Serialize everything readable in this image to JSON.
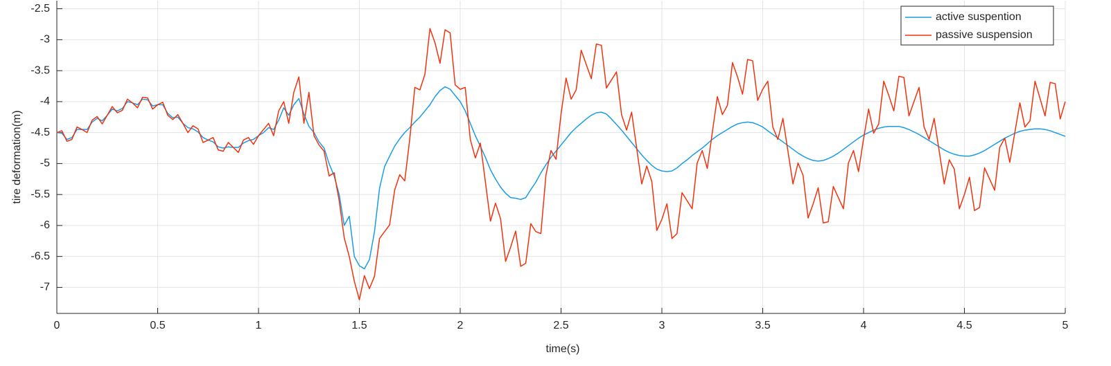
{
  "chart_data": {
    "type": "line",
    "xlabel": "time(s)",
    "ylabel": "tire deformation(m)",
    "xlim": [
      0,
      5
    ],
    "ylim": [
      -7.42,
      -2.37
    ],
    "xticks": [
      0,
      0.5,
      1,
      1.5,
      2,
      2.5,
      3,
      3.5,
      4,
      4.5,
      5
    ],
    "yticks": [
      -7,
      -6.5,
      -6,
      -5.5,
      -5,
      -4.5,
      -4,
      -3.5,
      -3,
      -2.5
    ],
    "grid": true,
    "legend": "upper right",
    "x": [
      0,
      0.025,
      0.05,
      0.075,
      0.1,
      0.125,
      0.15,
      0.175,
      0.2,
      0.225,
      0.25,
      0.275,
      0.3,
      0.325,
      0.35,
      0.375,
      0.4,
      0.425,
      0.45,
      0.475,
      0.5,
      0.525,
      0.55,
      0.575,
      0.6,
      0.625,
      0.65,
      0.675,
      0.7,
      0.725,
      0.75,
      0.775,
      0.8,
      0.825,
      0.85,
      0.875,
      0.9,
      0.925,
      0.95,
      0.975,
      1,
      1.025,
      1.05,
      1.075,
      1.1,
      1.125,
      1.15,
      1.175,
      1.2,
      1.225,
      1.25,
      1.275,
      1.3,
      1.325,
      1.35,
      1.375,
      1.4,
      1.425,
      1.45,
      1.475,
      1.5,
      1.525,
      1.55,
      1.575,
      1.6,
      1.625,
      1.65,
      1.675,
      1.7,
      1.725,
      1.75,
      1.775,
      1.8,
      1.825,
      1.85,
      1.875,
      1.9,
      1.925,
      1.95,
      1.975,
      2,
      2.025,
      2.05,
      2.075,
      2.1,
      2.125,
      2.15,
      2.175,
      2.2,
      2.225,
      2.25,
      2.275,
      2.3,
      2.325,
      2.35,
      2.375,
      2.4,
      2.425,
      2.45,
      2.475,
      2.5,
      2.525,
      2.55,
      2.575,
      2.6,
      2.625,
      2.65,
      2.675,
      2.7,
      2.725,
      2.75,
      2.775,
      2.8,
      2.825,
      2.85,
      2.875,
      2.9,
      2.925,
      2.95,
      2.975,
      3,
      3.025,
      3.05,
      3.075,
      3.1,
      3.125,
      3.15,
      3.175,
      3.2,
      3.225,
      3.25,
      3.275,
      3.3,
      3.325,
      3.35,
      3.375,
      3.4,
      3.425,
      3.45,
      3.475,
      3.5,
      3.525,
      3.55,
      3.575,
      3.6,
      3.625,
      3.65,
      3.675,
      3.7,
      3.725,
      3.75,
      3.775,
      3.8,
      3.825,
      3.85,
      3.875,
      3.9,
      3.925,
      3.95,
      3.975,
      4,
      4.025,
      4.05,
      4.075,
      4.1,
      4.125,
      4.15,
      4.175,
      4.2,
      4.225,
      4.25,
      4.275,
      4.3,
      4.325,
      4.35,
      4.375,
      4.4,
      4.425,
      4.45,
      4.475,
      4.5,
      4.525,
      4.55,
      4.575,
      4.6,
      4.625,
      4.65,
      4.675,
      4.7,
      4.725,
      4.75,
      4.775,
      4.8,
      4.825,
      4.85,
      4.875,
      4.9,
      4.925,
      4.95,
      4.975,
      5
    ],
    "series": [
      {
        "name": "active suspention",
        "color": "#1a9be6",
        "values": [
          -4.5,
          -4.51,
          -4.61,
          -4.58,
          -4.45,
          -4.45,
          -4.45,
          -4.33,
          -4.27,
          -4.31,
          -4.22,
          -4.12,
          -4.15,
          -4.11,
          -4.0,
          -4.02,
          -4.05,
          -3.96,
          -3.97,
          -4.07,
          -4.05,
          -4.05,
          -4.19,
          -4.26,
          -4.25,
          -4.35,
          -4.42,
          -4.44,
          -4.49,
          -4.58,
          -4.62,
          -4.65,
          -4.73,
          -4.75,
          -4.73,
          -4.74,
          -4.74,
          -4.67,
          -4.63,
          -4.61,
          -4.55,
          -4.5,
          -4.42,
          -4.45,
          -4.3,
          -4.1,
          -4.22,
          -4.05,
          -3.95,
          -4.2,
          -4.4,
          -4.5,
          -4.65,
          -4.75,
          -5.0,
          -5.2,
          -5.5,
          -6.0,
          -5.85,
          -6.5,
          -6.65,
          -6.7,
          -6.55,
          -6.1,
          -5.4,
          -5.05,
          -4.88,
          -4.72,
          -4.6,
          -4.5,
          -4.42,
          -4.33,
          -4.25,
          -4.15,
          -4.05,
          -3.92,
          -3.82,
          -3.76,
          -3.8,
          -3.9,
          -4.0,
          -4.15,
          -4.35,
          -4.55,
          -4.72,
          -4.9,
          -5.1,
          -5.25,
          -5.38,
          -5.48,
          -5.55,
          -5.56,
          -5.58,
          -5.55,
          -5.42,
          -5.3,
          -5.15,
          -5.02,
          -4.9,
          -4.8,
          -4.7,
          -4.6,
          -4.5,
          -4.42,
          -4.35,
          -4.28,
          -4.22,
          -4.18,
          -4.17,
          -4.2,
          -4.28,
          -4.37,
          -4.46,
          -4.56,
          -4.66,
          -4.76,
          -4.86,
          -4.95,
          -5.03,
          -5.09,
          -5.12,
          -5.13,
          -5.12,
          -5.07,
          -5.0,
          -4.94,
          -4.87,
          -4.81,
          -4.75,
          -4.68,
          -4.61,
          -4.55,
          -4.5,
          -4.45,
          -4.4,
          -4.36,
          -4.34,
          -4.33,
          -4.34,
          -4.37,
          -4.41,
          -4.47,
          -4.53,
          -4.59,
          -4.65,
          -4.71,
          -4.77,
          -4.83,
          -4.88,
          -4.92,
          -4.95,
          -4.96,
          -4.95,
          -4.92,
          -4.88,
          -4.83,
          -4.77,
          -4.71,
          -4.65,
          -4.59,
          -4.54,
          -4.5,
          -4.46,
          -4.43,
          -4.41,
          -4.4,
          -4.4,
          -4.4,
          -4.42,
          -4.45,
          -4.49,
          -4.53,
          -4.58,
          -4.63,
          -4.68,
          -4.73,
          -4.78,
          -4.82,
          -4.85,
          -4.87,
          -4.88,
          -4.88,
          -4.86,
          -4.83,
          -4.79,
          -4.74,
          -4.69,
          -4.64,
          -4.59,
          -4.55,
          -4.51,
          -4.48,
          -4.46,
          -4.45,
          -4.44,
          -4.44,
          -4.45,
          -4.47,
          -4.5,
          -4.53,
          -4.56
        ]
      },
      {
        "name": "passive suspension",
        "color": "#f0320f",
        "values": [
          -4.5,
          -4.47,
          -4.64,
          -4.61,
          -4.41,
          -4.45,
          -4.5,
          -4.3,
          -4.24,
          -4.36,
          -4.22,
          -4.08,
          -4.18,
          -4.14,
          -3.96,
          -4.02,
          -4.1,
          -3.93,
          -3.94,
          -4.12,
          -4.05,
          -4.01,
          -4.22,
          -4.29,
          -4.21,
          -4.35,
          -4.5,
          -4.39,
          -4.44,
          -4.66,
          -4.62,
          -4.58,
          -4.78,
          -4.8,
          -4.66,
          -4.74,
          -4.82,
          -4.62,
          -4.58,
          -4.69,
          -4.55,
          -4.45,
          -4.35,
          -4.55,
          -4.15,
          -4.0,
          -4.35,
          -3.85,
          -3.6,
          -4.35,
          -3.85,
          -4.55,
          -4.7,
          -4.8,
          -5.2,
          -5.15,
          -5.6,
          -6.2,
          -6.5,
          -6.9,
          -7.2,
          -6.81,
          -7.02,
          -6.82,
          -6.21,
          -6.1,
          -5.99,
          -5.43,
          -5.18,
          -5.28,
          -4.6,
          -3.77,
          -3.81,
          -3.56,
          -2.82,
          -3.05,
          -3.38,
          -2.84,
          -2.89,
          -3.73,
          -3.8,
          -3.77,
          -4.61,
          -4.91,
          -4.67,
          -5.3,
          -5.93,
          -5.64,
          -5.89,
          -6.58,
          -6.35,
          -6.09,
          -6.66,
          -6.61,
          -5.97,
          -6.1,
          -6.13,
          -5.19,
          -4.79,
          -4.93,
          -4.2,
          -3.62,
          -3.96,
          -3.81,
          -3.17,
          -3.4,
          -3.63,
          -3.07,
          -3.09,
          -3.78,
          -3.65,
          -3.52,
          -4.21,
          -4.46,
          -4.17,
          -4.75,
          -5.33,
          -5.04,
          -5.29,
          -6.08,
          -5.9,
          -5.65,
          -6.21,
          -6.13,
          -5.47,
          -5.6,
          -5.73,
          -4.99,
          -4.79,
          -5.08,
          -4.5,
          -3.92,
          -4.21,
          -4.06,
          -3.37,
          -3.6,
          -3.88,
          -3.32,
          -3.34,
          -3.98,
          -3.8,
          -3.67,
          -4.41,
          -4.61,
          -4.27,
          -4.8,
          -5.33,
          -4.99,
          -5.19,
          -5.88,
          -5.65,
          -5.39,
          -5.96,
          -5.94,
          -5.37,
          -5.55,
          -5.73,
          -4.99,
          -4.79,
          -5.13,
          -4.6,
          -4.12,
          -4.51,
          -4.36,
          -3.67,
          -3.9,
          -4.15,
          -3.59,
          -3.61,
          -4.23,
          -4.0,
          -3.77,
          -4.41,
          -4.61,
          -4.27,
          -4.8,
          -5.33,
          -4.94,
          -5.09,
          -5.73,
          -5.5,
          -5.22,
          -5.76,
          -5.71,
          -5.07,
          -5.25,
          -5.43,
          -4.74,
          -4.59,
          -4.98,
          -4.5,
          -4.02,
          -4.41,
          -4.31,
          -3.67,
          -3.95,
          -4.23,
          -3.69,
          -3.71,
          -4.28,
          -4.0
        ]
      }
    ]
  }
}
